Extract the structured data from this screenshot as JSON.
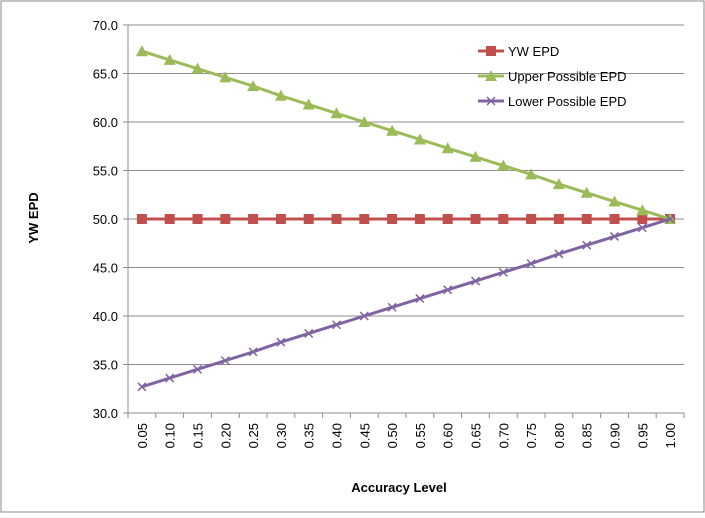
{
  "chart_data": {
    "type": "line",
    "title": "",
    "xlabel": "Accuracy Level",
    "ylabel": "YW EPD",
    "ylim": [
      30.0,
      70.0
    ],
    "ytick_step": 5,
    "yticks": [
      "30.0",
      "35.0",
      "40.0",
      "45.0",
      "50.0",
      "55.0",
      "60.0",
      "65.0",
      "70.0"
    ],
    "x": [
      "0.05",
      "0.10",
      "0.15",
      "0.20",
      "0.25",
      "0.30",
      "0.35",
      "0.40",
      "0.45",
      "0.50",
      "0.55",
      "0.60",
      "0.65",
      "0.70",
      "0.75",
      "0.80",
      "0.85",
      "0.90",
      "0.95",
      "1.00"
    ],
    "grid": "horizontal",
    "legend_position": "top-right",
    "series": [
      {
        "name": "YW EPD",
        "color": "#c0504d",
        "marker": "square",
        "values": [
          50.0,
          50.0,
          50.0,
          50.0,
          50.0,
          50.0,
          50.0,
          50.0,
          50.0,
          50.0,
          50.0,
          50.0,
          50.0,
          50.0,
          50.0,
          50.0,
          50.0,
          50.0,
          50.0,
          50.0
        ]
      },
      {
        "name": "Upper Possible EPD",
        "color": "#9bbb59",
        "marker": "triangle",
        "values": [
          67.3,
          66.4,
          65.5,
          64.6,
          63.7,
          62.7,
          61.8,
          60.9,
          60.0,
          59.1,
          58.2,
          57.3,
          56.4,
          55.5,
          54.6,
          53.6,
          52.7,
          51.8,
          50.9,
          50.0
        ]
      },
      {
        "name": "Lower Possible EPD",
        "color": "#8064a2",
        "marker": "x",
        "values": [
          32.7,
          33.6,
          34.5,
          35.4,
          36.3,
          37.3,
          38.2,
          39.1,
          40.0,
          40.9,
          41.8,
          42.7,
          43.6,
          44.5,
          45.4,
          46.4,
          47.3,
          48.2,
          49.1,
          50.0
        ]
      }
    ]
  }
}
